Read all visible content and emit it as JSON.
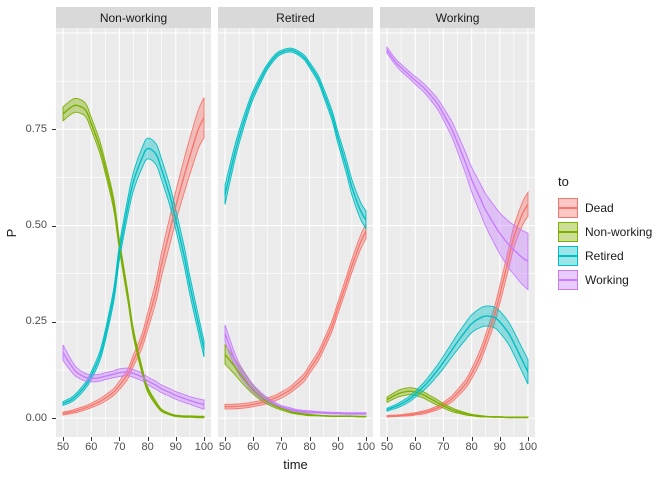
{
  "chart_data": {
    "type": "line",
    "subtype": "ribbon-confidence-bands",
    "title": "",
    "xlabel": "time",
    "ylabel": "P",
    "x_ticks": [
      50,
      60,
      70,
      80,
      90,
      100
    ],
    "x_tick_labels": [
      "50",
      "60",
      "70",
      "80",
      "90",
      "100"
    ],
    "y_ticks": [
      0,
      0.25,
      0.5,
      0.75
    ],
    "y_tick_labels": [
      "0.00",
      "0.25",
      "0.50",
      "0.75"
    ],
    "x_range": [
      47.5,
      102.5
    ],
    "y_range": [
      -0.049,
      1.013
    ],
    "grid": {
      "y_major": [
        0,
        0.25,
        0.5,
        0.75,
        1.0
      ],
      "y_minor": [
        0.125,
        0.375,
        0.625,
        0.875
      ],
      "x_minor": [
        55,
        65,
        75,
        85,
        95
      ]
    },
    "colors": {
      "panel_bg": "#EBEBEB",
      "strip_bg": "#D9D9D9",
      "grid": "#FFFFFF",
      "tick_text": "#4D4D4D",
      "title_text": "#1A1A1A",
      "tick_mark": "#333333"
    },
    "legend": {
      "title": "to",
      "position": "right",
      "entries": [
        {
          "label": "Dead",
          "color": "#F8766D"
        },
        {
          "label": "Non-working",
          "color": "#7CAE00"
        },
        {
          "label": "Retired",
          "color": "#00BFC4"
        },
        {
          "label": "Working",
          "color": "#C77CFF"
        }
      ]
    },
    "facets": [
      {
        "title": "Non-working",
        "x": [
          50,
          53,
          55,
          58,
          60,
          63,
          65,
          68,
          70,
          73,
          75,
          78,
          80,
          83,
          85,
          88,
          90,
          93,
          95,
          98,
          100
        ],
        "series": [
          {
            "name": "Dead",
            "color": "#F8766D",
            "y": [
              0.012,
              0.016,
              0.02,
              0.027,
              0.033,
              0.043,
              0.052,
              0.068,
              0.085,
              0.115,
              0.15,
              0.2,
              0.25,
              0.33,
              0.4,
              0.49,
              0.55,
              0.63,
              0.68,
              0.75,
              0.78
            ],
            "hw": [
              0.004,
              0.004,
              0.005,
              0.005,
              0.006,
              0.007,
              0.008,
              0.009,
              0.011,
              0.013,
              0.015,
              0.018,
              0.022,
              0.027,
              0.031,
              0.036,
              0.039,
              0.044,
              0.047,
              0.05,
              0.052
            ]
          },
          {
            "name": "Non-working",
            "color": "#7CAE00",
            "y": [
              0.79,
              0.808,
              0.812,
              0.8,
              0.765,
              0.705,
              0.65,
              0.555,
              0.45,
              0.315,
              0.22,
              0.125,
              0.075,
              0.038,
              0.02,
              0.01,
              0.006,
              0.004,
              0.004,
              0.003,
              0.003
            ],
            "hw": [
              0.018,
              0.018,
              0.018,
              0.017,
              0.016,
              0.016,
              0.015,
              0.015,
              0.014,
              0.012,
              0.011,
              0.009,
              0.007,
              0.005,
              0.003,
              0.002,
              0.002,
              0.002,
              0.002,
              0.002,
              0.002
            ]
          },
          {
            "name": "Retired",
            "color": "#00BFC4",
            "y": [
              0.038,
              0.048,
              0.06,
              0.085,
              0.11,
              0.16,
              0.215,
              0.32,
              0.43,
              0.55,
              0.615,
              0.675,
              0.7,
              0.685,
              0.645,
              0.575,
              0.515,
              0.42,
              0.345,
              0.245,
              0.18
            ],
            "hw": [
              0.005,
              0.006,
              0.007,
              0.008,
              0.01,
              0.012,
              0.014,
              0.017,
              0.02,
              0.022,
              0.024,
              0.026,
              0.027,
              0.027,
              0.027,
              0.026,
              0.026,
              0.025,
              0.024,
              0.022,
              0.021
            ]
          },
          {
            "name": "Working",
            "color": "#C77CFF",
            "y": [
              0.17,
              0.135,
              0.118,
              0.106,
              0.103,
              0.105,
              0.109,
              0.114,
              0.118,
              0.12,
              0.116,
              0.107,
              0.097,
              0.085,
              0.076,
              0.066,
              0.059,
              0.051,
              0.046,
              0.039,
              0.035
            ],
            "hw": [
              0.02,
              0.015,
              0.012,
              0.01,
              0.009,
              0.009,
              0.009,
              0.009,
              0.01,
              0.01,
              0.01,
              0.01,
              0.01,
              0.01,
              0.01,
              0.01,
              0.01,
              0.01,
              0.01,
              0.011,
              0.012
            ]
          }
        ]
      },
      {
        "title": "Retired",
        "x": [
          50,
          53,
          55,
          58,
          60,
          63,
          65,
          68,
          70,
          73,
          75,
          78,
          80,
          83,
          85,
          88,
          90,
          93,
          95,
          98,
          100
        ],
        "series": [
          {
            "name": "Dead",
            "color": "#F8766D",
            "y": [
              0.03,
              0.03,
              0.031,
              0.033,
              0.036,
              0.04,
              0.045,
              0.053,
              0.06,
              0.073,
              0.085,
              0.105,
              0.127,
              0.16,
              0.19,
              0.24,
              0.285,
              0.35,
              0.395,
              0.455,
              0.485
            ],
            "hw": [
              0.006,
              0.006,
              0.006,
              0.006,
              0.006,
              0.006,
              0.007,
              0.007,
              0.008,
              0.008,
              0.009,
              0.01,
              0.011,
              0.012,
              0.013,
              0.014,
              0.015,
              0.016,
              0.017,
              0.018,
              0.019
            ]
          },
          {
            "name": "Non-working",
            "color": "#7CAE00",
            "y": [
              0.165,
              0.138,
              0.118,
              0.09,
              0.073,
              0.053,
              0.043,
              0.031,
              0.025,
              0.017,
              0.013,
              0.01,
              0.008,
              0.007,
              0.006,
              0.005,
              0.005,
              0.005,
              0.005,
              0.004,
              0.004
            ],
            "hw": [
              0.025,
              0.021,
              0.018,
              0.014,
              0.011,
              0.008,
              0.007,
              0.005,
              0.004,
              0.003,
              0.002,
              0.002,
              0.002,
              0.001,
              0.001,
              0.001,
              0.001,
              0.001,
              0.001,
              0.001,
              0.001
            ]
          },
          {
            "name": "Retired",
            "color": "#00BFC4",
            "y": [
              0.58,
              0.675,
              0.73,
              0.8,
              0.84,
              0.885,
              0.912,
              0.94,
              0.95,
              0.956,
              0.952,
              0.937,
              0.917,
              0.882,
              0.845,
              0.785,
              0.73,
              0.655,
              0.6,
              0.54,
              0.515
            ],
            "hw": [
              0.025,
              0.02,
              0.017,
              0.013,
              0.011,
              0.009,
              0.007,
              0.006,
              0.005,
              0.005,
              0.005,
              0.006,
              0.007,
              0.009,
              0.011,
              0.013,
              0.015,
              0.018,
              0.02,
              0.022,
              0.023
            ]
          },
          {
            "name": "Working",
            "color": "#C77CFF",
            "y": [
              0.22,
              0.16,
              0.128,
              0.095,
              0.077,
              0.057,
              0.047,
              0.035,
              0.029,
              0.023,
              0.02,
              0.017,
              0.016,
              0.015,
              0.014,
              0.013,
              0.013,
              0.012,
              0.012,
              0.012,
              0.012
            ],
            "hw": [
              0.022,
              0.018,
              0.015,
              0.012,
              0.01,
              0.008,
              0.007,
              0.005,
              0.004,
              0.004,
              0.003,
              0.003,
              0.003,
              0.002,
              0.002,
              0.002,
              0.002,
              0.002,
              0.002,
              0.002,
              0.002
            ]
          }
        ]
      },
      {
        "title": "Working",
        "x": [
          50,
          53,
          55,
          58,
          60,
          63,
          65,
          68,
          70,
          73,
          75,
          78,
          80,
          83,
          85,
          88,
          90,
          93,
          95,
          98,
          100
        ],
        "series": [
          {
            "name": "Dead",
            "color": "#F8766D",
            "y": [
              0.005,
              0.006,
              0.007,
              0.009,
              0.011,
              0.015,
              0.019,
              0.027,
              0.035,
              0.05,
              0.065,
              0.09,
              0.115,
              0.16,
              0.2,
              0.265,
              0.32,
              0.41,
              0.47,
              0.53,
              0.555
            ],
            "hw": [
              0.002,
              0.002,
              0.002,
              0.003,
              0.003,
              0.004,
              0.004,
              0.005,
              0.006,
              0.008,
              0.009,
              0.011,
              0.013,
              0.016,
              0.018,
              0.021,
              0.023,
              0.026,
              0.028,
              0.03,
              0.031
            ]
          },
          {
            "name": "Non-working",
            "color": "#7CAE00",
            "y": [
              0.048,
              0.06,
              0.066,
              0.07,
              0.068,
              0.06,
              0.052,
              0.04,
              0.032,
              0.022,
              0.017,
              0.011,
              0.008,
              0.005,
              0.004,
              0.003,
              0.003,
              0.002,
              0.002,
              0.002,
              0.002
            ],
            "hw": [
              0.007,
              0.008,
              0.009,
              0.009,
              0.009,
              0.008,
              0.008,
              0.007,
              0.006,
              0.005,
              0.004,
              0.003,
              0.002,
              0.002,
              0.001,
              0.001,
              0.001,
              0.001,
              0.001,
              0.001,
              0.001
            ]
          },
          {
            "name": "Retired",
            "color": "#00BFC4",
            "y": [
              0.022,
              0.03,
              0.037,
              0.05,
              0.062,
              0.082,
              0.098,
              0.125,
              0.145,
              0.177,
              0.198,
              0.227,
              0.245,
              0.26,
              0.265,
              0.262,
              0.25,
              0.222,
              0.195,
              0.15,
              0.12
            ],
            "hw": [
              0.004,
              0.005,
              0.006,
              0.007,
              0.008,
              0.01,
              0.012,
              0.014,
              0.016,
              0.018,
              0.02,
              0.022,
              0.023,
              0.025,
              0.026,
              0.027,
              0.028,
              0.029,
              0.03,
              0.031,
              0.032
            ]
          },
          {
            "name": "Working",
            "color": "#C77CFF",
            "y": [
              0.955,
              0.925,
              0.91,
              0.89,
              0.877,
              0.858,
              0.842,
              0.815,
              0.79,
              0.75,
              0.715,
              0.66,
              0.62,
              0.572,
              0.54,
              0.503,
              0.48,
              0.452,
              0.437,
              0.417,
              0.407
            ],
            "hw": [
              0.008,
              0.008,
              0.009,
              0.009,
              0.01,
              0.011,
              0.012,
              0.014,
              0.016,
              0.02,
              0.023,
              0.028,
              0.032,
              0.038,
              0.042,
              0.049,
              0.053,
              0.06,
              0.064,
              0.07,
              0.073
            ]
          }
        ]
      }
    ]
  }
}
